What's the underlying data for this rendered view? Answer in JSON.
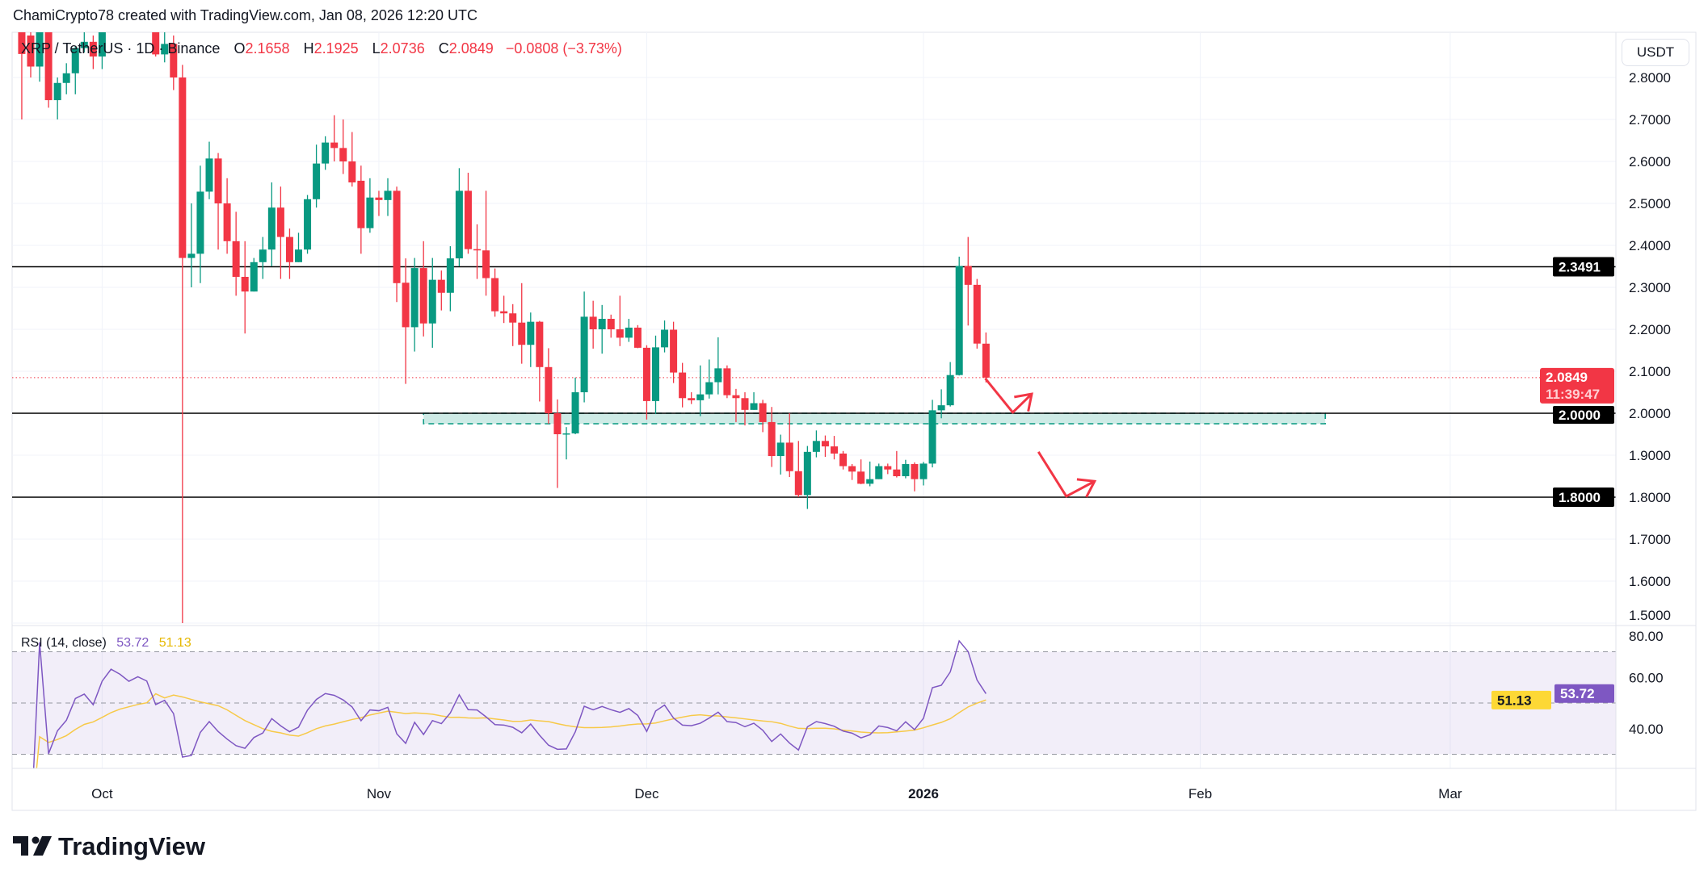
{
  "header": {
    "attribution": "ChamiCrypto78 created with TradingView.com, Jan 08, 2026 12:20 UTC"
  },
  "legend": {
    "symbol": "XRP / TetherUS · 1D · Binance",
    "o_label": "O",
    "o": "2.1658",
    "h_label": "H",
    "h": "2.1925",
    "l_label": "L",
    "l": "2.0736",
    "c_label": "C",
    "c": "2.0849",
    "change": "−0.0808 (−3.73%)"
  },
  "currency_button": "USDT",
  "price_axis": {
    "ticks": [
      "2.8000",
      "2.7000",
      "2.6000",
      "2.5000",
      "2.4000",
      "2.3000",
      "2.2000",
      "2.1000",
      "2.0000",
      "1.9000",
      "1.8000",
      "1.7000",
      "1.6000",
      "1.5000"
    ]
  },
  "price_labels": {
    "resistance": "2.3491",
    "current_price": "2.0849",
    "countdown": "11:39:47",
    "support_1": "2.0000",
    "support_2": "1.8000"
  },
  "time_axis": {
    "labels": [
      {
        "text": "Oct",
        "date": "2025-10-01",
        "bold": false
      },
      {
        "text": "Nov",
        "date": "2025-11-01",
        "bold": false
      },
      {
        "text": "Dec",
        "date": "2025-12-01",
        "bold": false
      },
      {
        "text": "2026",
        "date": "2026-01-01",
        "bold": true
      },
      {
        "text": "Feb",
        "date": "2026-02-01",
        "bold": false
      },
      {
        "text": "Mar",
        "date": "2026-03-01",
        "bold": false
      }
    ]
  },
  "rsi": {
    "title": "RSI (14, close)",
    "value": "53.72",
    "ma_value": "51.13",
    "axis_ticks": [
      "80.00",
      "60.00",
      "40.00"
    ],
    "upper_band": 70,
    "middle_band": 50,
    "lower_band": 30
  },
  "logo": "TradingView",
  "colors": {
    "up": "#089981",
    "down": "#f23645",
    "rsi_line": "#7e57c2",
    "rsi_ma": "#f7c948",
    "zone_fill": "#089981",
    "arrows": "#f23645",
    "levels": "#000000",
    "grid": "#f0f3fa"
  },
  "chart_data": {
    "type": "candlestick",
    "ylim": [
      1.5,
      2.9
    ],
    "horizontal_lines": [
      2.3491,
      2.0,
      1.8
    ],
    "current_price": 2.0849,
    "zone": {
      "from": "2025-11-06",
      "to": "2026-02-15",
      "top": 2.0,
      "bottom": 1.975
    },
    "arrows": [
      [
        [
          "2026-01-07T22:00",
          2.083
        ],
        [
          "2026-01-11T00:00",
          2.002
        ],
        [
          "2026-01-13T03:00",
          2.046
        ]
      ],
      [
        [
          "2026-01-13T21:00",
          1.908
        ],
        [
          "2026-01-17T00:00",
          1.802
        ],
        [
          "2026-01-20T04:00",
          1.838
        ]
      ]
    ],
    "candles": [
      [
        "2025-09-22",
        2.91,
        2.93,
        2.7,
        2.856
      ],
      [
        "2025-09-23",
        2.9,
        2.93,
        2.8,
        2.826
      ],
      [
        "2025-09-24",
        2.826,
        2.93,
        2.79,
        2.91
      ],
      [
        "2025-09-25",
        2.91,
        2.93,
        2.728,
        2.746
      ],
      [
        "2025-09-26",
        2.746,
        2.8,
        2.7,
        2.787
      ],
      [
        "2025-09-27",
        2.787,
        2.834,
        2.76,
        2.81
      ],
      [
        "2025-09-28",
        2.81,
        2.875,
        2.76,
        2.87
      ],
      [
        "2025-09-29",
        2.87,
        2.93,
        2.86,
        2.885
      ],
      [
        "2025-09-30",
        2.885,
        2.9,
        2.82,
        2.85
      ],
      [
        "2025-10-01",
        2.85,
        2.95,
        2.82,
        2.95
      ],
      [
        "2025-10-02",
        2.95,
        3.05,
        2.94,
        3.02
      ],
      [
        "2025-10-03",
        3.02,
        3.08,
        2.96,
        3.0
      ],
      [
        "2025-10-04",
        3.0,
        3.02,
        2.94,
        2.97
      ],
      [
        "2025-10-05",
        2.97,
        3.06,
        2.95,
        3.0
      ],
      [
        "2025-10-06",
        3.0,
        3.04,
        2.93,
        2.98
      ],
      [
        "2025-10-07",
        2.98,
        3.0,
        2.85,
        2.855
      ],
      [
        "2025-10-08",
        2.855,
        2.93,
        2.836,
        2.88
      ],
      [
        "2025-10-09",
        2.88,
        2.9,
        2.77,
        2.8
      ],
      [
        "2025-10-10",
        2.8,
        2.83,
        1.5,
        2.37
      ],
      [
        "2025-10-11",
        2.37,
        2.5,
        2.3,
        2.38
      ],
      [
        "2025-10-12",
        2.38,
        2.59,
        2.31,
        2.528
      ],
      [
        "2025-10-13",
        2.528,
        2.647,
        2.51,
        2.607
      ],
      [
        "2025-10-14",
        2.607,
        2.62,
        2.39,
        2.5
      ],
      [
        "2025-10-15",
        2.5,
        2.56,
        2.38,
        2.41
      ],
      [
        "2025-10-16",
        2.41,
        2.48,
        2.28,
        2.325
      ],
      [
        "2025-10-17",
        2.325,
        2.41,
        2.19,
        2.29
      ],
      [
        "2025-10-18",
        2.29,
        2.37,
        2.29,
        2.36
      ],
      [
        "2025-10-19",
        2.36,
        2.42,
        2.32,
        2.39
      ],
      [
        "2025-10-20",
        2.39,
        2.55,
        2.35,
        2.49
      ],
      [
        "2025-10-21",
        2.49,
        2.54,
        2.32,
        2.42
      ],
      [
        "2025-10-22",
        2.42,
        2.44,
        2.32,
        2.36
      ],
      [
        "2025-10-23",
        2.36,
        2.43,
        2.36,
        2.39
      ],
      [
        "2025-10-24",
        2.39,
        2.52,
        2.38,
        2.51
      ],
      [
        "2025-10-25",
        2.51,
        2.64,
        2.49,
        2.595
      ],
      [
        "2025-10-26",
        2.595,
        2.66,
        2.58,
        2.645
      ],
      [
        "2025-10-27",
        2.645,
        2.71,
        2.6,
        2.632
      ],
      [
        "2025-10-28",
        2.632,
        2.7,
        2.57,
        2.6
      ],
      [
        "2025-10-29",
        2.6,
        2.67,
        2.54,
        2.55
      ],
      [
        "2025-10-30",
        2.554,
        2.59,
        2.38,
        2.441
      ],
      [
        "2025-10-31",
        2.441,
        2.56,
        2.43,
        2.514
      ],
      [
        "2025-11-01",
        2.514,
        2.53,
        2.47,
        2.508
      ],
      [
        "2025-11-02",
        2.508,
        2.56,
        2.47,
        2.53
      ],
      [
        "2025-11-03",
        2.53,
        2.54,
        2.265,
        2.31
      ],
      [
        "2025-11-04",
        2.311,
        2.369,
        2.07,
        2.205
      ],
      [
        "2025-11-05",
        2.205,
        2.37,
        2.147,
        2.346
      ],
      [
        "2025-11-06",
        2.346,
        2.41,
        2.183,
        2.214
      ],
      [
        "2025-11-07",
        2.214,
        2.37,
        2.156,
        2.318
      ],
      [
        "2025-11-08",
        2.318,
        2.34,
        2.245,
        2.287
      ],
      [
        "2025-11-09",
        2.287,
        2.398,
        2.243,
        2.369
      ],
      [
        "2025-11-10",
        2.369,
        2.584,
        2.35,
        2.53
      ],
      [
        "2025-11-11",
        2.53,
        2.573,
        2.38,
        2.391
      ],
      [
        "2025-11-12",
        2.391,
        2.45,
        2.32,
        2.388
      ],
      [
        "2025-11-13",
        2.388,
        2.53,
        2.28,
        2.322
      ],
      [
        "2025-11-14",
        2.322,
        2.345,
        2.23,
        2.243
      ],
      [
        "2025-11-15",
        2.243,
        2.28,
        2.215,
        2.238
      ],
      [
        "2025-11-16",
        2.238,
        2.26,
        2.16,
        2.216
      ],
      [
        "2025-11-17",
        2.216,
        2.31,
        2.118,
        2.163
      ],
      [
        "2025-11-18",
        2.163,
        2.24,
        2.11,
        2.218
      ],
      [
        "2025-11-19",
        2.218,
        2.22,
        2.028,
        2.11
      ],
      [
        "2025-11-20",
        2.11,
        2.155,
        1.975,
        2.0
      ],
      [
        "2025-11-21",
        2.0,
        2.033,
        1.822,
        1.95
      ],
      [
        "2025-11-22",
        1.95,
        1.967,
        1.89,
        1.952
      ],
      [
        "2025-11-23",
        1.952,
        2.085,
        1.95,
        2.05
      ],
      [
        "2025-11-24",
        2.05,
        2.29,
        2.026,
        2.23
      ],
      [
        "2025-11-25",
        2.23,
        2.268,
        2.154,
        2.2
      ],
      [
        "2025-11-26",
        2.2,
        2.258,
        2.142,
        2.225
      ],
      [
        "2025-11-27",
        2.225,
        2.235,
        2.18,
        2.2
      ],
      [
        "2025-11-28",
        2.2,
        2.28,
        2.16,
        2.18
      ],
      [
        "2025-11-29",
        2.18,
        2.225,
        2.17,
        2.204
      ],
      [
        "2025-11-30",
        2.204,
        2.21,
        2.155,
        2.156
      ],
      [
        "2025-12-01",
        2.156,
        2.162,
        1.985,
        2.029
      ],
      [
        "2025-12-02",
        2.029,
        2.185,
        1.998,
        2.157
      ],
      [
        "2025-12-03",
        2.157,
        2.221,
        2.145,
        2.199
      ],
      [
        "2025-12-04",
        2.199,
        2.218,
        2.072,
        2.097
      ],
      [
        "2025-12-05",
        2.097,
        2.12,
        2.014,
        2.036
      ],
      [
        "2025-12-06",
        2.036,
        2.05,
        2.022,
        2.031
      ],
      [
        "2025-12-07",
        2.031,
        2.114,
        1.993,
        2.045
      ],
      [
        "2025-12-08",
        2.045,
        2.128,
        2.035,
        2.074
      ],
      [
        "2025-12-09",
        2.074,
        2.181,
        2.045,
        2.107
      ],
      [
        "2025-12-10",
        2.107,
        2.114,
        2.036,
        2.043
      ],
      [
        "2025-12-11",
        2.043,
        2.058,
        1.979,
        2.036
      ],
      [
        "2025-12-12",
        2.036,
        2.05,
        1.971,
        2.008
      ],
      [
        "2025-12-13",
        2.008,
        2.05,
        2.008,
        2.024
      ],
      [
        "2025-12-14",
        2.024,
        2.032,
        1.955,
        1.979
      ],
      [
        "2025-12-15",
        1.979,
        2.015,
        1.872,
        1.898
      ],
      [
        "2025-12-16",
        1.898,
        1.949,
        1.854,
        1.93
      ],
      [
        "2025-12-17",
        1.93,
        2.0,
        1.848,
        1.862
      ],
      [
        "2025-12-18",
        1.862,
        1.934,
        1.8,
        1.805
      ],
      [
        "2025-12-19",
        1.805,
        1.922,
        1.772,
        1.908
      ],
      [
        "2025-12-20",
        1.908,
        1.959,
        1.895,
        1.934
      ],
      [
        "2025-12-21",
        1.934,
        1.947,
        1.896,
        1.921
      ],
      [
        "2025-12-22",
        1.921,
        1.946,
        1.89,
        1.904
      ],
      [
        "2025-12-23",
        1.904,
        1.91,
        1.866,
        1.874
      ],
      [
        "2025-12-24",
        1.874,
        1.879,
        1.841,
        1.861
      ],
      [
        "2025-12-25",
        1.861,
        1.89,
        1.831,
        1.832
      ],
      [
        "2025-12-26",
        1.832,
        1.885,
        1.826,
        1.843
      ],
      [
        "2025-12-27",
        1.843,
        1.88,
        1.843,
        1.874
      ],
      [
        "2025-12-28",
        1.874,
        1.88,
        1.855,
        1.866
      ],
      [
        "2025-12-29",
        1.866,
        1.91,
        1.847,
        1.85
      ],
      [
        "2025-12-30",
        1.85,
        1.889,
        1.845,
        1.879
      ],
      [
        "2025-12-31",
        1.879,
        1.883,
        1.814,
        1.843
      ],
      [
        "2026-01-01",
        1.843,
        1.884,
        1.828,
        1.88
      ],
      [
        "2026-01-02",
        1.88,
        2.032,
        1.871,
        2.007
      ],
      [
        "2026-01-03",
        2.007,
        2.057,
        1.988,
        2.019
      ],
      [
        "2026-01-04",
        2.019,
        2.122,
        2.016,
        2.091
      ],
      [
        "2026-01-05",
        2.091,
        2.373,
        2.09,
        2.351
      ],
      [
        "2026-01-06",
        2.351,
        2.42,
        2.209,
        2.306
      ],
      [
        "2026-01-07",
        2.306,
        2.32,
        2.154,
        2.166
      ],
      [
        "2026-01-08",
        2.1658,
        2.1925,
        2.0736,
        2.0849
      ]
    ]
  }
}
